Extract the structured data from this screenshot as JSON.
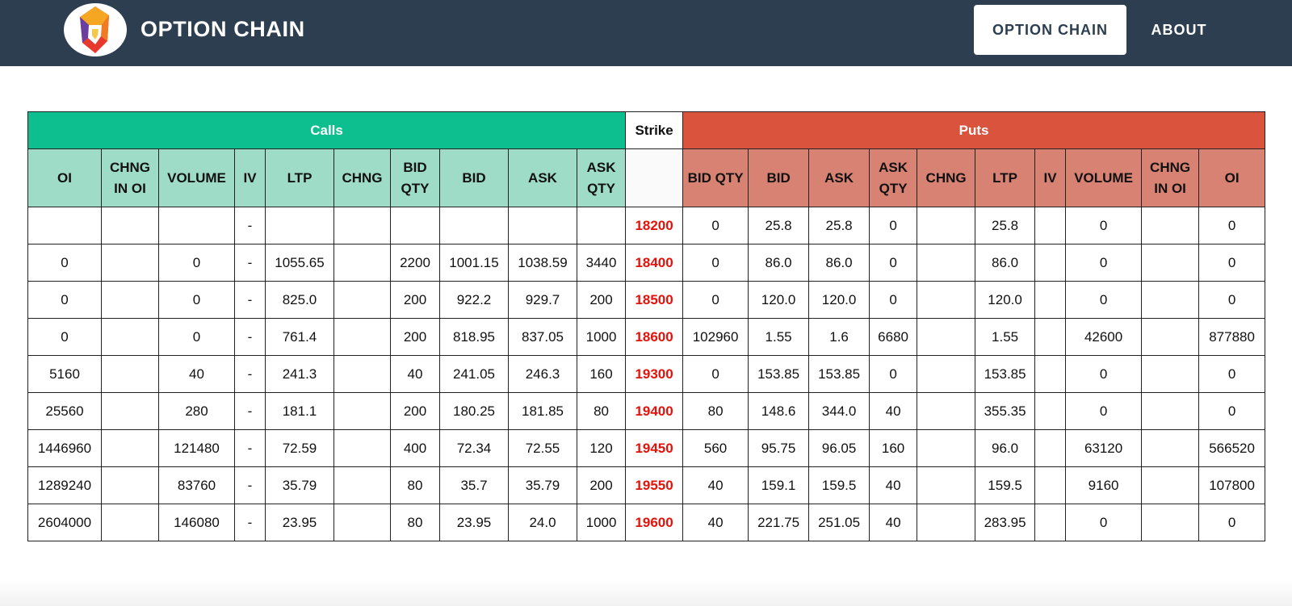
{
  "brand": {
    "title": "OPTION CHAIN"
  },
  "nav": {
    "option_chain": "OPTION CHAIN",
    "about": "ABOUT"
  },
  "colors": {
    "navbar": "#2c3e50",
    "calls": "#0dbf8f",
    "calls_light": "#9fdcc8",
    "puts": "#d9533d",
    "puts_light": "#d88273",
    "strike_text": "#e3120b"
  },
  "table": {
    "groups": {
      "calls": "Calls",
      "strike": "Strike",
      "puts": "Puts"
    },
    "call_columns": [
      "OI",
      "CHNG IN OI",
      "VOLUME",
      "IV",
      "LTP",
      "CHNG",
      "BID QTY",
      "BID",
      "ASK",
      "ASK QTY"
    ],
    "put_columns": [
      "BID QTY",
      "BID",
      "ASK",
      "ASK QTY",
      "CHNG",
      "LTP",
      "IV",
      "VOLUME",
      "CHNG IN OI",
      "OI"
    ],
    "rows": [
      {
        "calls": [
          "",
          "",
          "",
          "-",
          "",
          "",
          "",
          "",
          "",
          ""
        ],
        "strike": "18200",
        "puts": [
          "0",
          "25.8",
          "25.8",
          "0",
          "",
          "25.8",
          "",
          "0",
          "",
          "0"
        ]
      },
      {
        "calls": [
          "0",
          "",
          "0",
          "-",
          "1055.65",
          "",
          "2200",
          "1001.15",
          "1038.59",
          "3440"
        ],
        "strike": "18400",
        "puts": [
          "0",
          "86.0",
          "86.0",
          "0",
          "",
          "86.0",
          "",
          "0",
          "",
          "0"
        ]
      },
      {
        "calls": [
          "0",
          "",
          "0",
          "-",
          "825.0",
          "",
          "200",
          "922.2",
          "929.7",
          "200"
        ],
        "strike": "18500",
        "puts": [
          "0",
          "120.0",
          "120.0",
          "0",
          "",
          "120.0",
          "",
          "0",
          "",
          "0"
        ]
      },
      {
        "calls": [
          "0",
          "",
          "0",
          "-",
          "761.4",
          "",
          "200",
          "818.95",
          "837.05",
          "1000"
        ],
        "strike": "18600",
        "puts": [
          "102960",
          "1.55",
          "1.6",
          "6680",
          "",
          "1.55",
          "",
          "42600",
          "",
          "877880"
        ]
      },
      {
        "calls": [
          "5160",
          "",
          "40",
          "-",
          "241.3",
          "",
          "40",
          "241.05",
          "246.3",
          "160"
        ],
        "strike": "19300",
        "puts": [
          "0",
          "153.85",
          "153.85",
          "0",
          "",
          "153.85",
          "",
          "0",
          "",
          "0"
        ]
      },
      {
        "calls": [
          "25560",
          "",
          "280",
          "-",
          "181.1",
          "",
          "200",
          "180.25",
          "181.85",
          "80"
        ],
        "strike": "19400",
        "puts": [
          "80",
          "148.6",
          "344.0",
          "40",
          "",
          "355.35",
          "",
          "0",
          "",
          "0"
        ]
      },
      {
        "calls": [
          "1446960",
          "",
          "121480",
          "-",
          "72.59",
          "",
          "400",
          "72.34",
          "72.55",
          "120"
        ],
        "strike": "19450",
        "puts": [
          "560",
          "95.75",
          "96.05",
          "160",
          "",
          "96.0",
          "",
          "63120",
          "",
          "566520"
        ]
      },
      {
        "calls": [
          "1289240",
          "",
          "83760",
          "-",
          "35.79",
          "",
          "80",
          "35.7",
          "35.79",
          "200"
        ],
        "strike": "19550",
        "puts": [
          "40",
          "159.1",
          "159.5",
          "40",
          "",
          "159.5",
          "",
          "9160",
          "",
          "107800"
        ]
      },
      {
        "calls": [
          "2604000",
          "",
          "146080",
          "-",
          "23.95",
          "",
          "80",
          "23.95",
          "24.0",
          "1000"
        ],
        "strike": "19600",
        "puts": [
          "40",
          "221.75",
          "251.05",
          "40",
          "",
          "283.95",
          "",
          "0",
          "",
          "0"
        ]
      }
    ]
  }
}
